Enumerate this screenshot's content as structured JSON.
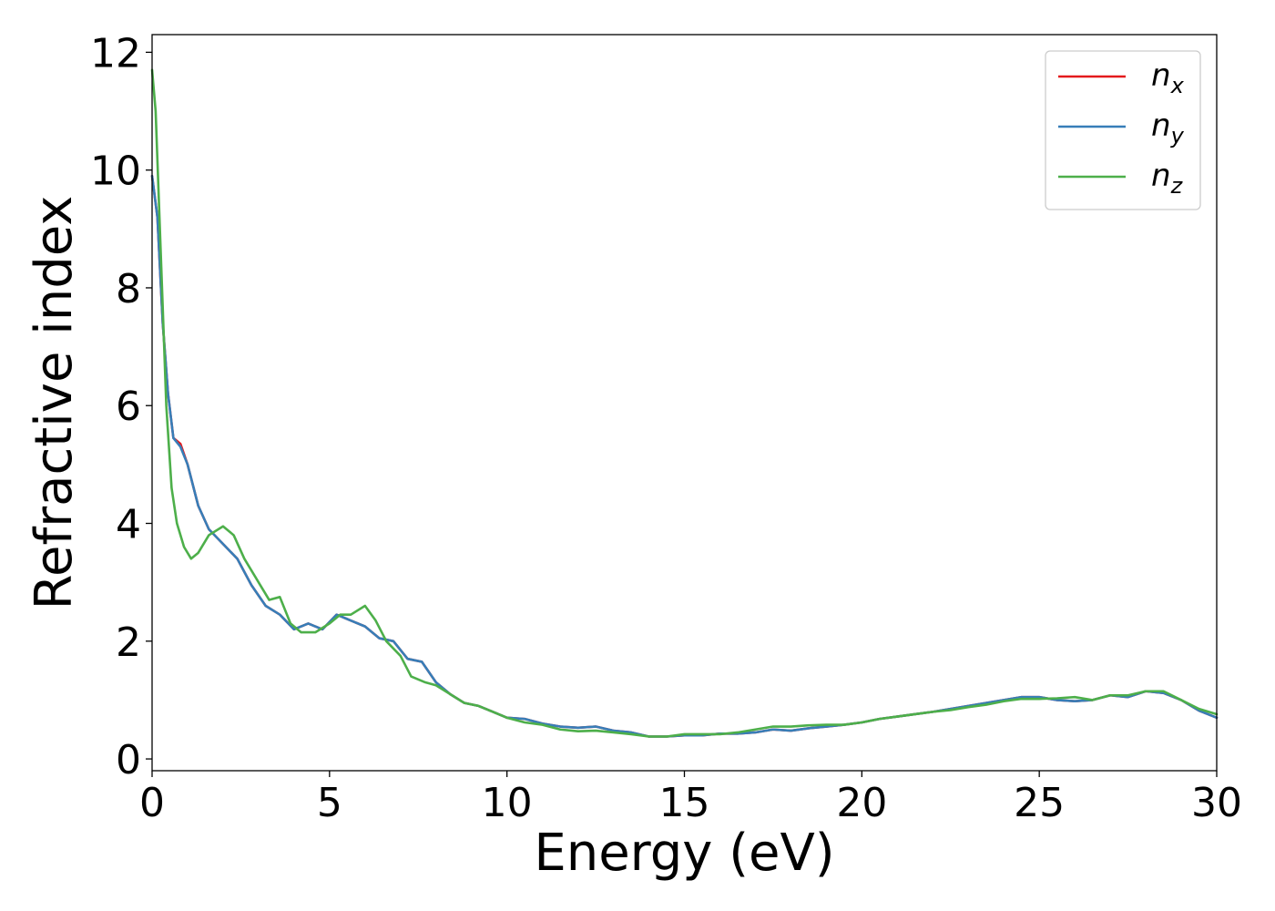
{
  "chart_data": {
    "type": "line",
    "xlabel": "Energy (eV)",
    "ylabel": "Refractive index",
    "xlim": [
      0,
      30
    ],
    "ylim": [
      -0.2,
      12.3
    ],
    "xticks": [
      "0",
      "5",
      "10",
      "15",
      "20",
      "25",
      "30"
    ],
    "yticks": [
      "0",
      "2",
      "4",
      "6",
      "8",
      "10",
      "12"
    ],
    "legend_position": "top-right",
    "grid": false,
    "series": [
      {
        "name": "n_x",
        "label_base": "n",
        "label_sub": "x",
        "color": "#e41a1c",
        "x": [
          0,
          0.15,
          0.3,
          0.45,
          0.6,
          0.8,
          1.0,
          1.3,
          1.6,
          2.0,
          2.4,
          2.8,
          3.2,
          3.6,
          4.0,
          4.4,
          4.8,
          5.2,
          5.6,
          6.0,
          6.4,
          6.8,
          7.2,
          7.6,
          8.0,
          8.4,
          8.8,
          9.2,
          9.6,
          10.0,
          10.5,
          11.0,
          11.5,
          12.0,
          12.5,
          13.0,
          13.5,
          14.0,
          14.5,
          15.0,
          15.5,
          16.0,
          16.5,
          17.0,
          17.5,
          18.0,
          18.5,
          19.0,
          19.5,
          20.0,
          20.5,
          21.0,
          21.5,
          22.0,
          22.5,
          23.0,
          23.5,
          24.0,
          24.5,
          25.0,
          25.5,
          26.0,
          26.5,
          27.0,
          27.5,
          28.0,
          28.5,
          29.0,
          29.5,
          30.0
        ],
        "y": [
          9.9,
          9.2,
          7.4,
          6.2,
          5.45,
          5.35,
          5.0,
          4.3,
          3.9,
          3.65,
          3.4,
          2.95,
          2.6,
          2.45,
          2.2,
          2.3,
          2.2,
          2.45,
          2.35,
          2.25,
          2.05,
          2.0,
          1.7,
          1.65,
          1.3,
          1.1,
          0.95,
          0.9,
          0.8,
          0.7,
          0.68,
          0.6,
          0.55,
          0.53,
          0.55,
          0.48,
          0.45,
          0.38,
          0.38,
          0.4,
          0.4,
          0.43,
          0.43,
          0.45,
          0.5,
          0.48,
          0.52,
          0.55,
          0.58,
          0.62,
          0.68,
          0.72,
          0.76,
          0.8,
          0.85,
          0.9,
          0.95,
          1.0,
          1.05,
          1.05,
          1.0,
          0.98,
          1.0,
          1.08,
          1.05,
          1.15,
          1.12,
          1.0,
          0.82,
          0.7
        ]
      },
      {
        "name": "n_y",
        "label_base": "n",
        "label_sub": "y",
        "color": "#377eb8",
        "x": [
          0,
          0.15,
          0.3,
          0.45,
          0.6,
          0.8,
          1.0,
          1.3,
          1.6,
          2.0,
          2.4,
          2.8,
          3.2,
          3.6,
          4.0,
          4.4,
          4.8,
          5.2,
          5.6,
          6.0,
          6.4,
          6.8,
          7.2,
          7.6,
          8.0,
          8.4,
          8.8,
          9.2,
          9.6,
          10.0,
          10.5,
          11.0,
          11.5,
          12.0,
          12.5,
          13.0,
          13.5,
          14.0,
          14.5,
          15.0,
          15.5,
          16.0,
          16.5,
          17.0,
          17.5,
          18.0,
          18.5,
          19.0,
          19.5,
          20.0,
          20.5,
          21.0,
          21.5,
          22.0,
          22.5,
          23.0,
          23.5,
          24.0,
          24.5,
          25.0,
          25.5,
          26.0,
          26.5,
          27.0,
          27.5,
          28.0,
          28.5,
          29.0,
          29.5,
          30.0
        ],
        "y": [
          9.9,
          9.2,
          7.4,
          6.2,
          5.45,
          5.3,
          5.0,
          4.3,
          3.9,
          3.65,
          3.4,
          2.95,
          2.6,
          2.45,
          2.2,
          2.3,
          2.2,
          2.45,
          2.35,
          2.25,
          2.05,
          2.0,
          1.7,
          1.65,
          1.3,
          1.1,
          0.95,
          0.9,
          0.8,
          0.7,
          0.68,
          0.6,
          0.55,
          0.53,
          0.55,
          0.48,
          0.45,
          0.38,
          0.38,
          0.4,
          0.4,
          0.43,
          0.43,
          0.45,
          0.5,
          0.48,
          0.52,
          0.55,
          0.58,
          0.62,
          0.68,
          0.72,
          0.76,
          0.8,
          0.85,
          0.9,
          0.95,
          1.0,
          1.05,
          1.05,
          1.0,
          0.98,
          1.0,
          1.08,
          1.05,
          1.15,
          1.12,
          1.0,
          0.82,
          0.7
        ]
      },
      {
        "name": "n_z",
        "label_base": "n",
        "label_sub": "z",
        "color": "#4daf4a",
        "x": [
          0,
          0.1,
          0.25,
          0.4,
          0.55,
          0.7,
          0.9,
          1.1,
          1.3,
          1.6,
          2.0,
          2.3,
          2.6,
          3.0,
          3.3,
          3.6,
          3.9,
          4.2,
          4.6,
          5.0,
          5.3,
          5.6,
          6.0,
          6.3,
          6.6,
          7.0,
          7.3,
          7.7,
          8.0,
          8.4,
          8.8,
          9.2,
          9.6,
          10.0,
          10.5,
          11.0,
          11.5,
          12.0,
          12.5,
          13.0,
          13.5,
          14.0,
          14.5,
          15.0,
          15.5,
          16.0,
          16.5,
          17.0,
          17.5,
          18.0,
          18.5,
          19.0,
          19.5,
          20.0,
          20.5,
          21.0,
          21.5,
          22.0,
          22.5,
          23.0,
          23.5,
          24.0,
          24.5,
          25.0,
          25.5,
          26.0,
          26.5,
          27.0,
          27.5,
          28.0,
          28.5,
          29.0,
          29.5,
          30.0
        ],
        "y": [
          11.7,
          11.0,
          8.5,
          6.0,
          4.6,
          4.0,
          3.6,
          3.4,
          3.5,
          3.8,
          3.95,
          3.8,
          3.4,
          3.0,
          2.7,
          2.75,
          2.3,
          2.15,
          2.15,
          2.3,
          2.45,
          2.45,
          2.6,
          2.35,
          2.0,
          1.75,
          1.4,
          1.3,
          1.25,
          1.1,
          0.95,
          0.9,
          0.8,
          0.7,
          0.62,
          0.58,
          0.5,
          0.47,
          0.48,
          0.45,
          0.42,
          0.38,
          0.38,
          0.42,
          0.42,
          0.42,
          0.45,
          0.5,
          0.55,
          0.55,
          0.57,
          0.58,
          0.58,
          0.62,
          0.68,
          0.72,
          0.76,
          0.8,
          0.83,
          0.88,
          0.92,
          0.98,
          1.02,
          1.02,
          1.03,
          1.05,
          1.0,
          1.08,
          1.08,
          1.15,
          1.15,
          1.0,
          0.85,
          0.76
        ]
      }
    ]
  }
}
